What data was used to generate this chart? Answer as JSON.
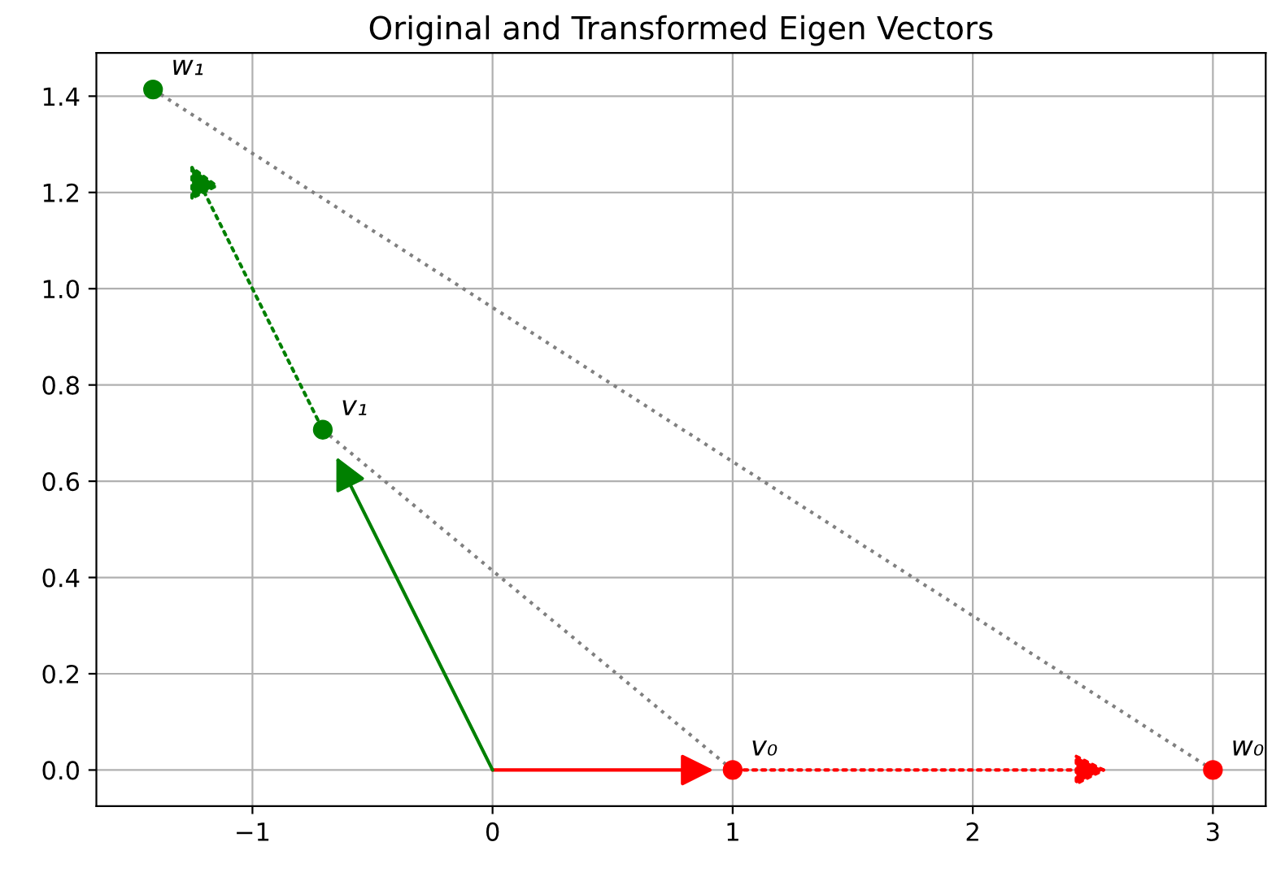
{
  "chart_data": {
    "type": "scatter",
    "title": "Original and Transformed Eigen Vectors",
    "xlim": [
      -1.65,
      3.22
    ],
    "ylim": [
      -0.075,
      1.49
    ],
    "xticks": [
      {
        "value": -1,
        "label": "−1"
      },
      0,
      1,
      2,
      3
    ],
    "yticks": [
      {
        "value": 0,
        "label": "0.0"
      },
      {
        "value": 0.2,
        "label": "0.2"
      },
      {
        "value": 0.4,
        "label": "0.4"
      },
      {
        "value": 0.6,
        "label": "0.6"
      },
      {
        "value": 0.8,
        "label": "0.8"
      },
      {
        "value": 1.0,
        "label": "1.0"
      },
      {
        "value": 1.2,
        "label": "1.2"
      },
      {
        "value": 1.4,
        "label": "1.4"
      }
    ],
    "grid": true,
    "series": [
      {
        "type": "line",
        "color": "#808080",
        "line_style": "dotted",
        "marker": "none",
        "x": [
          -1.414,
          3
        ],
        "values": [
          1.414,
          0
        ]
      },
      {
        "type": "line",
        "color": "#808080",
        "line_style": "dotted",
        "marker": "none",
        "x": [
          -0.707,
          1
        ],
        "values": [
          0.707,
          0
        ]
      },
      {
        "name": "v₀",
        "color": "#ff0000",
        "marker": "circle",
        "x": [
          1
        ],
        "values": [
          0
        ]
      },
      {
        "name": "w₀",
        "color": "#ff0000",
        "marker": "circle",
        "x": [
          3
        ],
        "values": [
          0
        ]
      },
      {
        "name": "v₁",
        "color": "#008000",
        "marker": "circle",
        "x": [
          -0.707
        ],
        "values": [
          0.707
        ]
      },
      {
        "name": "w₁",
        "color": "#008000",
        "marker": "circle",
        "x": [
          -1.414
        ],
        "values": [
          1.414
        ]
      }
    ]
  }
}
